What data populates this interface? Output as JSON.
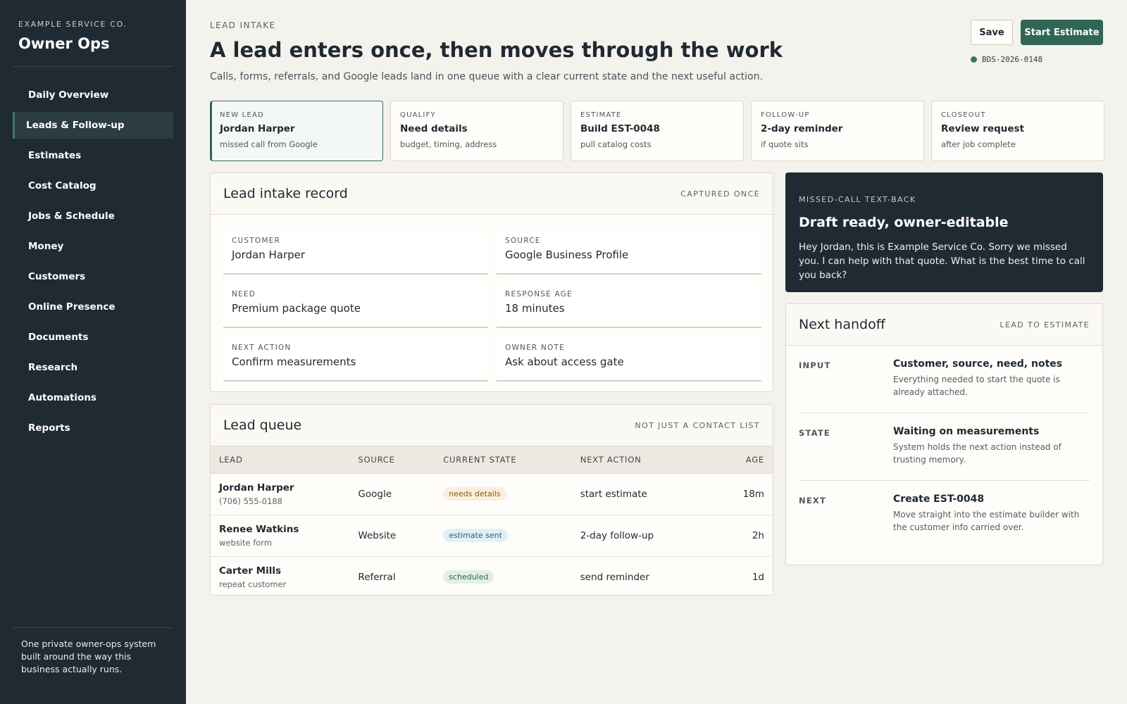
{
  "sidebar": {
    "company": "EXAMPLE SERVICE CO.",
    "app_name": "Owner Ops",
    "nav": [
      {
        "label": "Daily Overview",
        "active": false
      },
      {
        "label": "Leads & Follow-up",
        "active": true
      },
      {
        "label": "Estimates",
        "active": false
      },
      {
        "label": "Cost Catalog",
        "active": false
      },
      {
        "label": "Jobs & Schedule",
        "active": false
      },
      {
        "label": "Money",
        "active": false
      },
      {
        "label": "Customers",
        "active": false
      },
      {
        "label": "Online Presence",
        "active": false
      },
      {
        "label": "Documents",
        "active": false
      },
      {
        "label": "Research",
        "active": false
      },
      {
        "label": "Automations",
        "active": false
      },
      {
        "label": "Reports",
        "active": false
      }
    ],
    "footer": "One private owner-ops system built around the way this business actually runs."
  },
  "header": {
    "eyebrow": "LEAD INTAKE",
    "title": "A lead enters once, then moves through the work",
    "subtitle": "Calls, forms, referrals, and Google leads land in one queue with a clear current state and the next useful action.",
    "save_label": "Save",
    "start_label": "Start Estimate",
    "record_id": "BDS-2026-0148"
  },
  "stages": [
    {
      "label": "NEW LEAD",
      "title": "Jordan Harper",
      "desc": "missed call from Google",
      "active": true
    },
    {
      "label": "QUALIFY",
      "title": "Need details",
      "desc": "budget, timing, address",
      "active": false
    },
    {
      "label": "ESTIMATE",
      "title": "Build EST-0048",
      "desc": "pull catalog costs",
      "active": false
    },
    {
      "label": "FOLLOW-UP",
      "title": "2-day reminder",
      "desc": "if quote sits",
      "active": false
    },
    {
      "label": "CLOSEOUT",
      "title": "Review request",
      "desc": "after job complete",
      "active": false
    }
  ],
  "intake": {
    "title": "Lead intake record",
    "tag": "CAPTURED ONCE",
    "fields": [
      {
        "label": "CUSTOMER",
        "value": "Jordan Harper"
      },
      {
        "label": "SOURCE",
        "value": "Google Business Profile"
      },
      {
        "label": "NEED",
        "value": "Premium package quote"
      },
      {
        "label": "RESPONSE AGE",
        "value": "18 minutes"
      },
      {
        "label": "NEXT ACTION",
        "value": "Confirm measurements"
      },
      {
        "label": "OWNER NOTE",
        "value": "Ask about access gate"
      }
    ]
  },
  "queue": {
    "title": "Lead queue",
    "tag": "NOT JUST A CONTACT LIST",
    "columns": [
      "LEAD",
      "SOURCE",
      "CURRENT STATE",
      "NEXT ACTION",
      "AGE"
    ],
    "rows": [
      {
        "name": "Jordan Harper",
        "sub": "(706) 555-0188",
        "source": "Google",
        "state": "needs details",
        "state_bg": "#fbeedb",
        "state_fg": "#8a5a1c",
        "next": "start estimate",
        "age": "18m"
      },
      {
        "name": "Renee Watkins",
        "sub": "website form",
        "source": "Website",
        "state": "estimate sent",
        "state_bg": "#e1eff6",
        "state_fg": "#2e5d74",
        "next": "2-day follow-up",
        "age": "2h"
      },
      {
        "name": "Carter Mills",
        "sub": "repeat customer",
        "source": "Referral",
        "state": "scheduled",
        "state_bg": "#e2f0e8",
        "state_fg": "#2f6449",
        "next": "send reminder",
        "age": "1d"
      }
    ]
  },
  "textback": {
    "label": "MISSED-CALL TEXT-BACK",
    "title": "Draft ready, owner-editable",
    "message": "Hey Jordan, this is Example Service Co. Sorry we missed you. I can help with that quote. What is the best time to call you back?"
  },
  "handoff": {
    "title": "Next handoff",
    "tag": "LEAD TO ESTIMATE",
    "rows": [
      {
        "key": "INPUT",
        "title": "Customer, source, need, notes",
        "desc": "Everything needed to start the quote is already attached."
      },
      {
        "key": "STATE",
        "title": "Waiting on measurements",
        "desc": "System holds the next action instead of trusting memory."
      },
      {
        "key": "NEXT",
        "title": "Create EST-0048",
        "desc": "Move straight into the estimate builder with the customer info carried over."
      }
    ]
  },
  "colors": {
    "sidebar_bg": "#202a33",
    "accent": "#2f6658",
    "page_bg": "#f4f2ed"
  }
}
